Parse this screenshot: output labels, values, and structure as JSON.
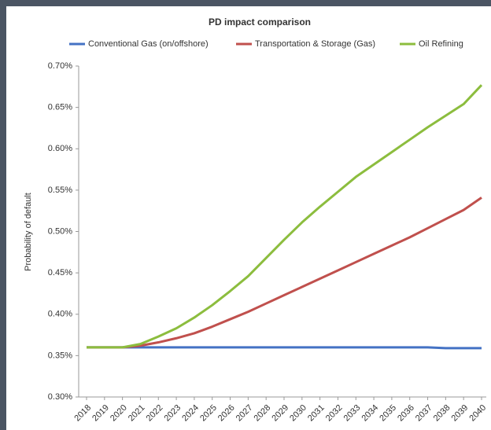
{
  "chart_data": {
    "type": "line",
    "title": "PD impact comparison",
    "y_label": "Probability of default",
    "categories": [
      "2018",
      "2019",
      "2020",
      "2021",
      "2022",
      "2023",
      "2024",
      "2025",
      "2026",
      "2027",
      "2028",
      "2029",
      "2030",
      "2031",
      "2032",
      "2033",
      "2034",
      "2035",
      "2036",
      "2037",
      "2038",
      "2039",
      "2040"
    ],
    "series": [
      {
        "name": "Conventional Gas (on/offshore)",
        "color": "#4472c4",
        "values": [
          0.36,
          0.36,
          0.36,
          0.36,
          0.36,
          0.36,
          0.36,
          0.36,
          0.36,
          0.36,
          0.36,
          0.36,
          0.36,
          0.36,
          0.36,
          0.36,
          0.36,
          0.36,
          0.36,
          0.36,
          0.359,
          0.359,
          0.359
        ]
      },
      {
        "name": "Transportation & Storage (Gas)",
        "color": "#c0504d",
        "values": [
          0.36,
          0.36,
          0.36,
          0.362,
          0.366,
          0.371,
          0.377,
          0.385,
          0.394,
          0.403,
          0.413,
          0.423,
          0.433,
          0.443,
          0.453,
          0.463,
          0.473,
          0.483,
          0.493,
          0.504,
          0.515,
          0.526,
          0.541
        ]
      },
      {
        "name": "Oil Refining",
        "color": "#8cbd3e",
        "values": [
          0.36,
          0.36,
          0.36,
          0.364,
          0.373,
          0.383,
          0.396,
          0.411,
          0.428,
          0.446,
          0.468,
          0.49,
          0.511,
          0.53,
          0.548,
          0.566,
          0.581,
          0.596,
          0.611,
          0.626,
          0.64,
          0.654,
          0.677
        ]
      }
    ],
    "ylim": [
      0.3,
      0.7
    ],
    "yticks": [
      {
        "value": 0.3,
        "label": "0.30%"
      },
      {
        "value": 0.35,
        "label": "0.35%"
      },
      {
        "value": 0.4,
        "label": "0.40%"
      },
      {
        "value": 0.45,
        "label": "0.45%"
      },
      {
        "value": 0.5,
        "label": "0.50%"
      },
      {
        "value": 0.55,
        "label": "0.55%"
      },
      {
        "value": 0.6,
        "label": "0.60%"
      },
      {
        "value": 0.65,
        "label": "0.65%"
      },
      {
        "value": 0.7,
        "label": "0.70%"
      }
    ],
    "grid": false
  }
}
